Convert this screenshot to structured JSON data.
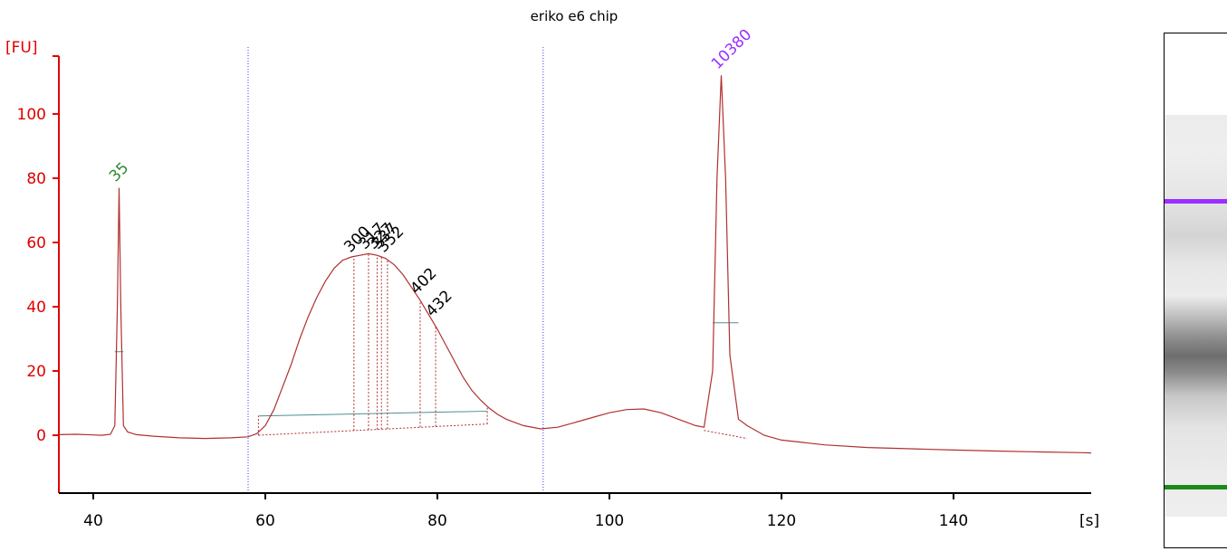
{
  "chart_data": {
    "type": "line",
    "title": "eriko e6 chip",
    "ylabel": "[FU]",
    "xlabel": "[s]",
    "xlim": [
      36,
      156
    ],
    "ylim": [
      -18,
      118
    ],
    "xticks": [
      40,
      60,
      80,
      100,
      120,
      140
    ],
    "yticks": [
      0,
      20,
      40,
      60,
      80,
      100
    ],
    "region_markers_x": [
      58,
      92.3
    ],
    "peaks": [
      {
        "label": "35",
        "x": 43,
        "y": 77,
        "color": "#2e8b2e"
      },
      {
        "label": "10380",
        "x": 113,
        "y": 112,
        "color": "#9b30ff"
      }
    ],
    "fragment_labels": [
      {
        "label": "300",
        "x": 70.3,
        "y": 55
      },
      {
        "label": "317",
        "x": 72.0,
        "y": 56
      },
      {
        "label": "327",
        "x": 73.0,
        "y": 56
      },
      {
        "label": "337",
        "x": 73.5,
        "y": 56
      },
      {
        "label": "352",
        "x": 74.2,
        "y": 55
      },
      {
        "label": "402",
        "x": 78.0,
        "y": 42
      },
      {
        "label": "432",
        "x": 79.8,
        "y": 35
      }
    ],
    "series": [
      {
        "color": "#b03030",
        "x": [
          36,
          38,
          40,
          41,
          42,
          42.5,
          42.8,
          43.0,
          43.2,
          43.5,
          44,
          45,
          47,
          50,
          53,
          56,
          58,
          59,
          60,
          61,
          62,
          63,
          64,
          65,
          66,
          67,
          68,
          69,
          70,
          71,
          72,
          73,
          74,
          75,
          76,
          77,
          78,
          79,
          80,
          81,
          82,
          83,
          84,
          85,
          86,
          87,
          88,
          89,
          90,
          92,
          94,
          96,
          98,
          100,
          102,
          104,
          106,
          108,
          110,
          111,
          112,
          112.5,
          113,
          113.5,
          114,
          115,
          116,
          118,
          120,
          125,
          130,
          135,
          140,
          145,
          150,
          155,
          156
        ],
        "y": [
          0.2,
          0.3,
          0.1,
          0.0,
          0.3,
          3,
          40,
          77,
          40,
          3,
          1.0,
          0.2,
          -0.3,
          -0.8,
          -1.0,
          -0.8,
          -0.5,
          0.5,
          3,
          8,
          15,
          22,
          30,
          37,
          43,
          48,
          52,
          54.5,
          55.5,
          56,
          56.5,
          56,
          55,
          53,
          50,
          46,
          42,
          37.5,
          33,
          28,
          23,
          18,
          14,
          11,
          8.5,
          6.5,
          5,
          4,
          3,
          2,
          2.5,
          4,
          5.5,
          7,
          8,
          8.2,
          7,
          5,
          3,
          2.5,
          20,
          80,
          112,
          80,
          25,
          5,
          3,
          0,
          -1.5,
          -3,
          -3.8,
          -4.2,
          -4.6,
          -4.9,
          -5.2,
          -5.4,
          -5.5
        ]
      }
    ]
  },
  "gel": {
    "bands": [
      {
        "name": "upper-marker",
        "color": "#9b30ff"
      },
      {
        "name": "lower-marker",
        "color": "#1a8a1a"
      }
    ]
  }
}
